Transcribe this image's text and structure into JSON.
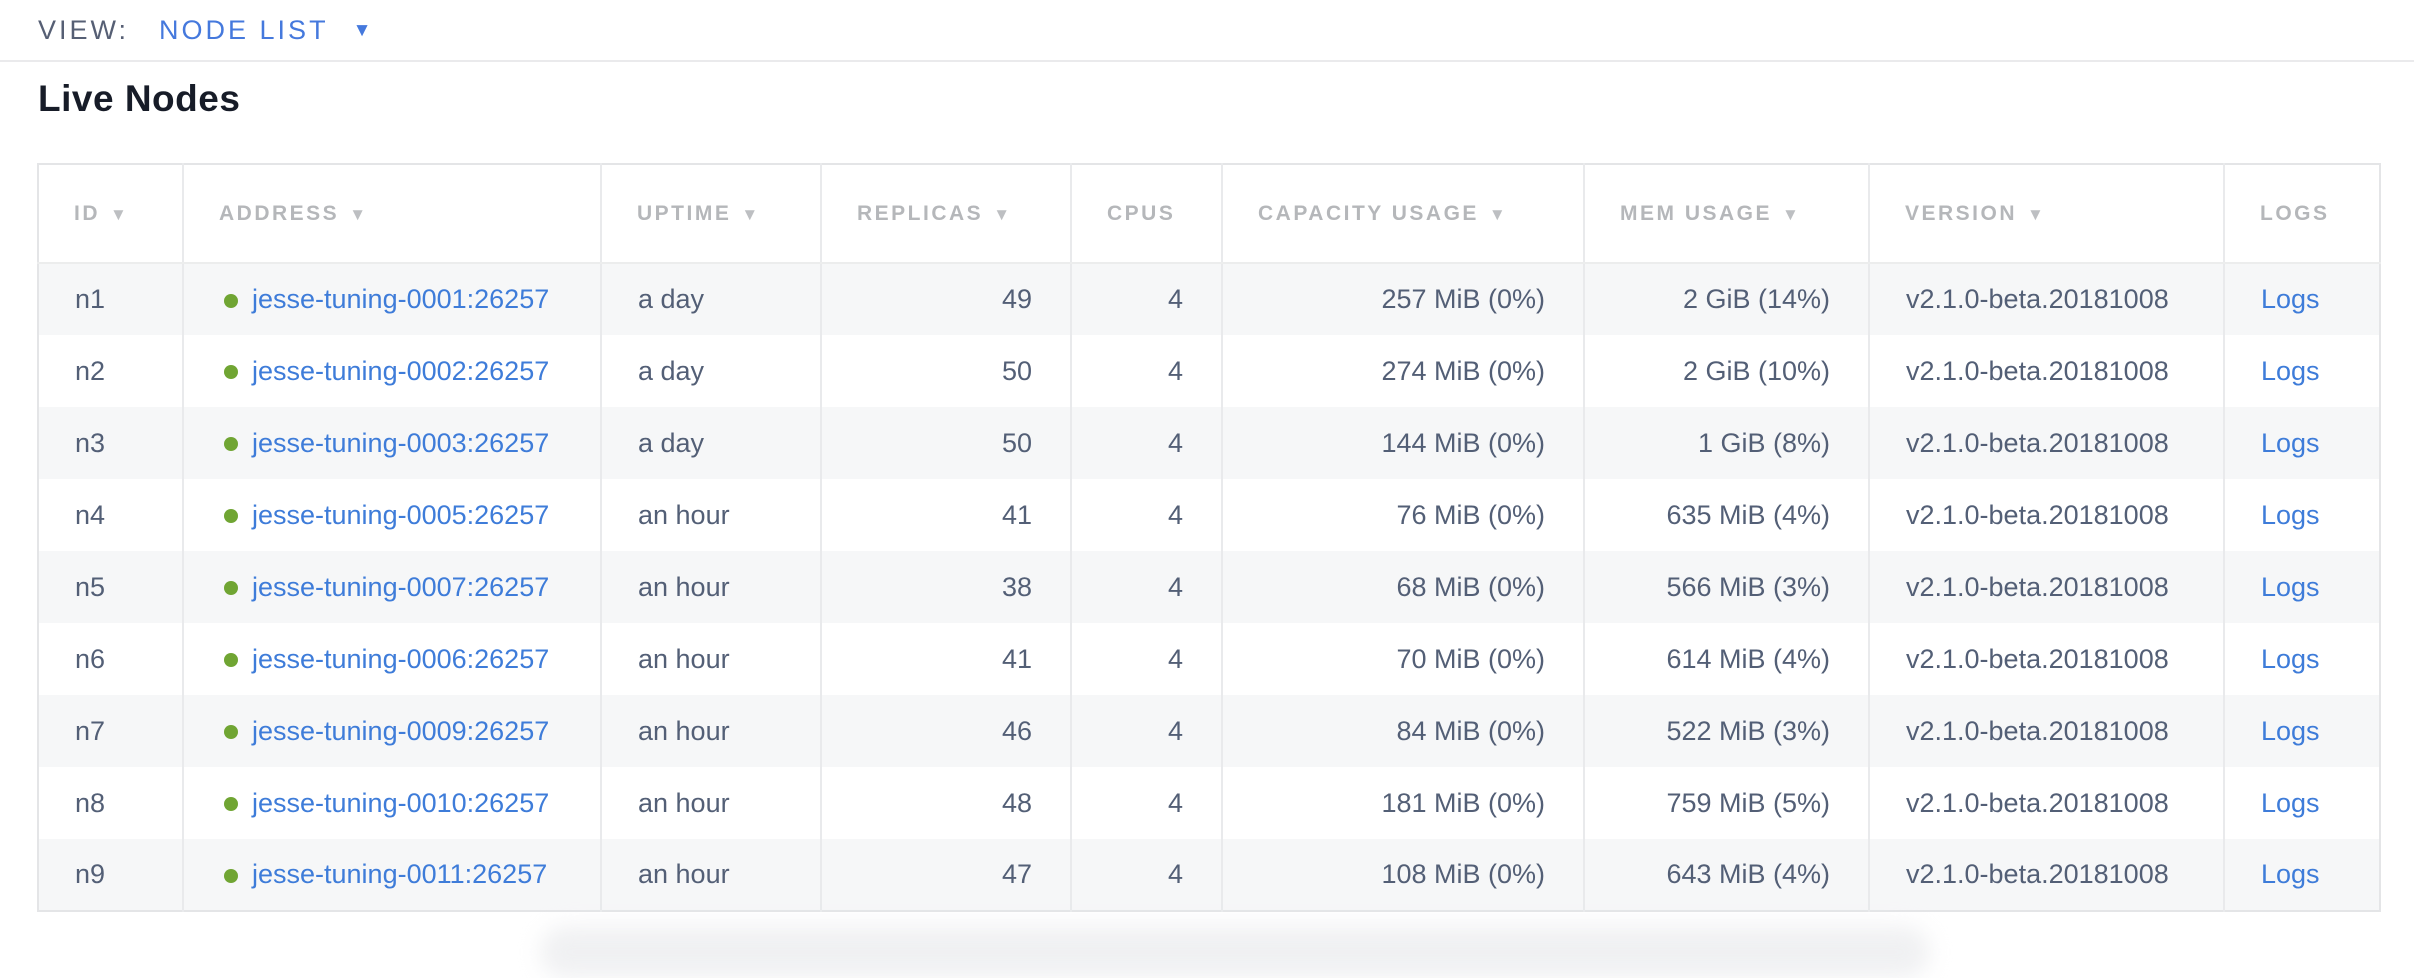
{
  "view_bar": {
    "label": "VIEW:",
    "selected_view": "NODE LIST",
    "dropdown_icon": "▼"
  },
  "page": {
    "title": "Live Nodes"
  },
  "nodes_table": {
    "columns": [
      {
        "label": "ID",
        "sorted": true
      },
      {
        "label": "ADDRESS",
        "sorted": true
      },
      {
        "label": "UPTIME",
        "sorted": true
      },
      {
        "label": "REPLICAS",
        "sorted": true
      },
      {
        "label": "CPUS",
        "sorted": false
      },
      {
        "label": "CAPACITY USAGE",
        "sorted": true
      },
      {
        "label": "MEM USAGE",
        "sorted": true
      },
      {
        "label": "VERSION",
        "sorted": true
      },
      {
        "label": "LOGS",
        "sorted": false
      }
    ],
    "sort_icon": "▼",
    "status_icon": "live-green-dot",
    "rows": [
      {
        "id": "n1",
        "address": "jesse-tuning-0001:26257",
        "uptime": "a day",
        "replicas": "49",
        "cpus": "4",
        "capacity": "257 MiB (0%)",
        "mem": "2 GiB (14%)",
        "version": "v2.1.0-beta.20181008",
        "logs": "Logs"
      },
      {
        "id": "n2",
        "address": "jesse-tuning-0002:26257",
        "uptime": "a day",
        "replicas": "50",
        "cpus": "4",
        "capacity": "274 MiB (0%)",
        "mem": "2 GiB (10%)",
        "version": "v2.1.0-beta.20181008",
        "logs": "Logs"
      },
      {
        "id": "n3",
        "address": "jesse-tuning-0003:26257",
        "uptime": "a day",
        "replicas": "50",
        "cpus": "4",
        "capacity": "144 MiB (0%)",
        "mem": "1 GiB (8%)",
        "version": "v2.1.0-beta.20181008",
        "logs": "Logs"
      },
      {
        "id": "n4",
        "address": "jesse-tuning-0005:26257",
        "uptime": "an hour",
        "replicas": "41",
        "cpus": "4",
        "capacity": "76 MiB (0%)",
        "mem": "635 MiB (4%)",
        "version": "v2.1.0-beta.20181008",
        "logs": "Logs"
      },
      {
        "id": "n5",
        "address": "jesse-tuning-0007:26257",
        "uptime": "an hour",
        "replicas": "38",
        "cpus": "4",
        "capacity": "68 MiB (0%)",
        "mem": "566 MiB (3%)",
        "version": "v2.1.0-beta.20181008",
        "logs": "Logs"
      },
      {
        "id": "n6",
        "address": "jesse-tuning-0006:26257",
        "uptime": "an hour",
        "replicas": "41",
        "cpus": "4",
        "capacity": "70 MiB (0%)",
        "mem": "614 MiB (4%)",
        "version": "v2.1.0-beta.20181008",
        "logs": "Logs"
      },
      {
        "id": "n7",
        "address": "jesse-tuning-0009:26257",
        "uptime": "an hour",
        "replicas": "46",
        "cpus": "4",
        "capacity": "84 MiB (0%)",
        "mem": "522 MiB (3%)",
        "version": "v2.1.0-beta.20181008",
        "logs": "Logs"
      },
      {
        "id": "n8",
        "address": "jesse-tuning-0010:26257",
        "uptime": "an hour",
        "replicas": "48",
        "cpus": "4",
        "capacity": "181 MiB (0%)",
        "mem": "759 MiB (5%)",
        "version": "v2.1.0-beta.20181008",
        "logs": "Logs"
      },
      {
        "id": "n9",
        "address": "jesse-tuning-0011:26257",
        "uptime": "an hour",
        "replicas": "47",
        "cpus": "4",
        "capacity": "108 MiB (0%)",
        "mem": "643 MiB (4%)",
        "version": "v2.1.0-beta.20181008",
        "logs": "Logs"
      }
    ]
  },
  "colors": {
    "accent_blue": "#4579dd",
    "link_blue": "#3e7cd9",
    "live_green": "#70a533",
    "header_gray": "#b5b7ba",
    "cell_text": "#535f76",
    "row_stripe": "#f6f7f8",
    "border_gray": "#e9eaec"
  }
}
